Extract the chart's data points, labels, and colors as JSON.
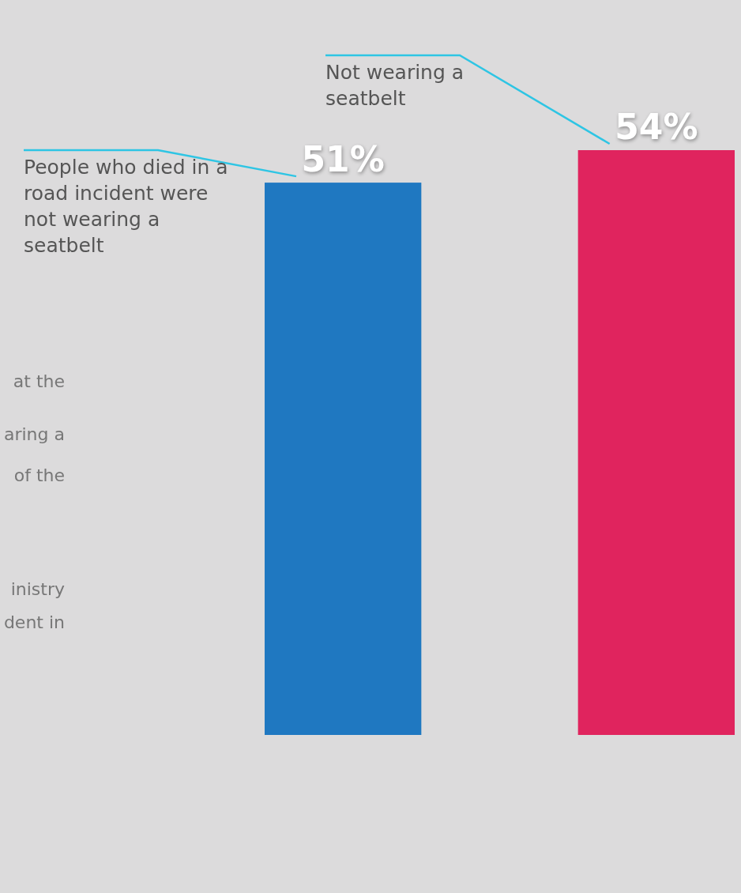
{
  "chart_data": {
    "type": "bar",
    "categories": [
      null,
      null
    ],
    "values": [
      51,
      54
    ],
    "value_labels": [
      "51%",
      "54%"
    ],
    "colors": [
      "#1f78c1",
      "#e0245e"
    ],
    "annotations": [
      "People who died in a road incident were not wearing a seatbelt",
      "Not wearing a seatbelt",
      "at the",
      "aring a",
      "of the",
      "inistry",
      "dent in"
    ]
  }
}
